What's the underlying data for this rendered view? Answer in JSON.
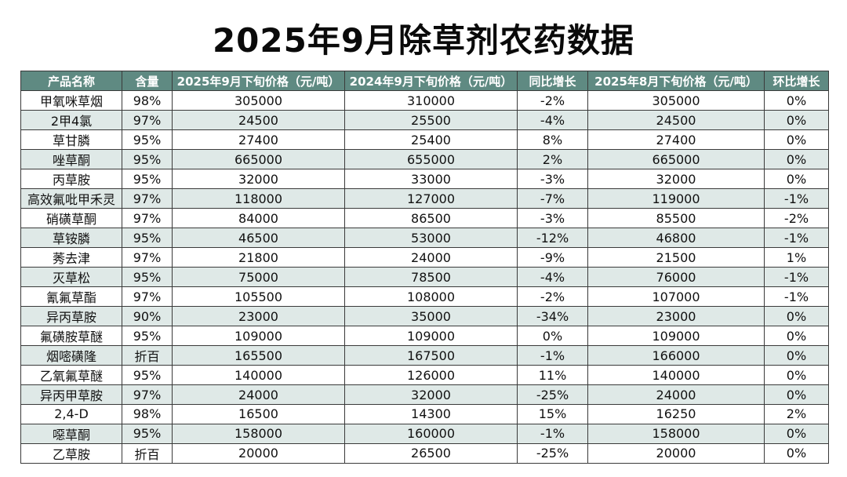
{
  "title": "2025年9月除草剂农药数据",
  "columns": [
    "产品名称",
    "含量",
    "2025年9月下旬价格（元/吨）",
    "2024年9月下旬价格（元/吨）",
    "同比增长",
    "2025年8月下旬价格（元/吨）",
    "环比增长"
  ],
  "rows": [
    [
      "甲氧咪草烟",
      "98%",
      "305000",
      "310000",
      "-2%",
      "305000",
      "0%"
    ],
    [
      "2甲4氯",
      "97%",
      "24500",
      "25500",
      "-4%",
      "24500",
      "0%"
    ],
    [
      "草甘膦",
      "95%",
      "27400",
      "25400",
      "8%",
      "27400",
      "0%"
    ],
    [
      "唑草酮",
      "95%",
      "665000",
      "655000",
      "2%",
      "665000",
      "0%"
    ],
    [
      "丙草胺",
      "95%",
      "32000",
      "33000",
      "-3%",
      "32000",
      "0%"
    ],
    [
      "高效氟吡甲禾灵",
      "97%",
      "118000",
      "127000",
      "-7%",
      "119000",
      "-1%"
    ],
    [
      "硝磺草酮",
      "97%",
      "84000",
      "86500",
      "-3%",
      "85500",
      "-2%"
    ],
    [
      "草铵膦",
      "95%",
      "46500",
      "53000",
      "-12%",
      "46800",
      "-1%"
    ],
    [
      "莠去津",
      "97%",
      "21800",
      "24000",
      "-9%",
      "21500",
      "1%"
    ],
    [
      "灭草松",
      "95%",
      "75000",
      "78500",
      "-4%",
      "76000",
      "-1%"
    ],
    [
      "氰氟草酯",
      "97%",
      "105500",
      "108000",
      "-2%",
      "107000",
      "-1%"
    ],
    [
      "异丙草胺",
      "90%",
      "23000",
      "35000",
      "-34%",
      "23000",
      "0%"
    ],
    [
      "氟磺胺草醚",
      "95%",
      "109000",
      "109000",
      "0%",
      "109000",
      "0%"
    ],
    [
      "烟嘧磺隆",
      "折百",
      "165500",
      "167500",
      "-1%",
      "166000",
      "0%"
    ],
    [
      "乙氧氟草醚",
      "95%",
      "140000",
      "126000",
      "11%",
      "140000",
      "0%"
    ],
    [
      "异丙甲草胺",
      "97%",
      "24000",
      "32000",
      "-25%",
      "24000",
      "0%"
    ],
    [
      "2,4-D",
      "98%",
      "16500",
      "14300",
      "15%",
      "16250",
      "2%"
    ],
    [
      "噁草酮",
      "95%",
      "158000",
      "160000",
      "-1%",
      "158000",
      "0%"
    ],
    [
      "乙草胺",
      "折百",
      "20000",
      "26500",
      "-25%",
      "20000",
      "0%"
    ]
  ],
  "colors": {
    "header_bg": "#5f8a82",
    "header_text": "#ffffff",
    "stripe": "#dfe9e7",
    "border": "#3a3a3a"
  }
}
